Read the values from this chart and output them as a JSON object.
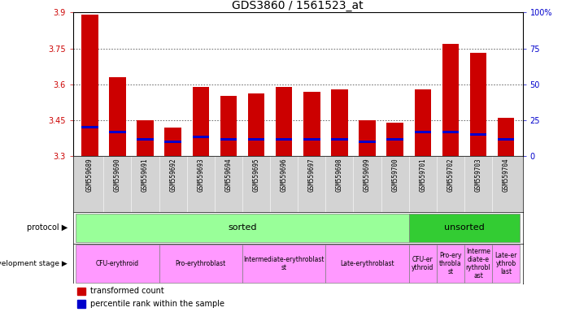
{
  "title": "GDS3860 / 1561523_at",
  "samples": [
    "GSM559689",
    "GSM559690",
    "GSM559691",
    "GSM559692",
    "GSM559693",
    "GSM559694",
    "GSM559695",
    "GSM559696",
    "GSM559697",
    "GSM559698",
    "GSM559699",
    "GSM559700",
    "GSM559701",
    "GSM559702",
    "GSM559703",
    "GSM559704"
  ],
  "bar_values": [
    3.89,
    3.63,
    3.45,
    3.42,
    3.59,
    3.55,
    3.56,
    3.59,
    3.57,
    3.58,
    3.45,
    3.44,
    3.58,
    3.77,
    3.73,
    3.46
  ],
  "percentile_values": [
    3.42,
    3.4,
    3.37,
    3.36,
    3.38,
    3.37,
    3.37,
    3.37,
    3.37,
    3.37,
    3.36,
    3.37,
    3.4,
    3.4,
    3.39,
    3.37
  ],
  "ymin": 3.3,
  "ymax": 3.9,
  "yticks": [
    3.3,
    3.45,
    3.6,
    3.75,
    3.9
  ],
  "ytick_labels": [
    "3.3",
    "3.45",
    "3.6",
    "3.75",
    "3.9"
  ],
  "right_yticks": [
    0,
    25,
    50,
    75,
    100
  ],
  "right_ytick_labels": [
    "0",
    "25",
    "50",
    "75",
    "100%"
  ],
  "bar_color": "#cc0000",
  "percentile_color": "#0000cc",
  "bar_width": 0.6,
  "protocol_sorted_label": "sorted",
  "protocol_unsorted_label": "unsorted",
  "protocol_sorted_color": "#99ff99",
  "protocol_unsorted_color": "#33cc33",
  "dev_stage_color": "#ff99ff",
  "dev_groups_sorted": [
    {
      "label": "CFU-erythroid",
      "start": 0,
      "end": 2
    },
    {
      "label": "Pro-erythroblast",
      "start": 3,
      "end": 5
    },
    {
      "label": "Intermediate-erythroblast\nst",
      "start": 6,
      "end": 8
    },
    {
      "label": "Late-erythroblast",
      "start": 9,
      "end": 11
    }
  ],
  "dev_groups_unsorted": [
    {
      "label": "CFU-er\nythroid",
      "start": 12,
      "end": 12
    },
    {
      "label": "Pro-ery\nthrobla\nst",
      "start": 13,
      "end": 13
    },
    {
      "label": "Interme\ndiate-e\nrythrobl\nast",
      "start": 14,
      "end": 14
    },
    {
      "label": "Late-er\nythrob\nlast",
      "start": 15,
      "end": 15
    }
  ],
  "legend_items": [
    {
      "label": "transformed count",
      "color": "#cc0000"
    },
    {
      "label": "percentile rank within the sample",
      "color": "#0000cc"
    }
  ],
  "left_label_color": "#cc0000",
  "right_axis_color": "#0000cc",
  "title_fontsize": 10,
  "tick_fontsize": 7,
  "sample_fontsize": 5.5,
  "row_label_fontsize": 7,
  "dev_label_fontsize": 5.5,
  "legend_fontsize": 7
}
